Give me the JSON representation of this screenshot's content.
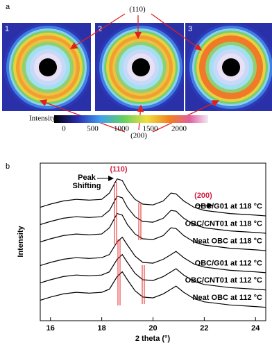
{
  "panel_a": {
    "label": "a",
    "images": [
      "1",
      "2",
      "3"
    ],
    "peak_110": "(110)",
    "peak_200": "(200)",
    "colorbar_label": "Intensity",
    "colorbar_ticks": [
      0,
      500,
      1000,
      1500,
      2000
    ]
  },
  "chart_data": {
    "type": "line",
    "panel_label": "b",
    "xlabel": "2 theta (°)",
    "ylabel": "Intensity",
    "annotations": [
      "(110)",
      "Peak",
      "Shifting",
      "(200)"
    ],
    "x": [
      15.6,
      16,
      16.5,
      17,
      17.5,
      18,
      18.3,
      18.6,
      18.8,
      19,
      19.3,
      19.6,
      20,
      20.4,
      20.7,
      20.9,
      21.2,
      21.6,
      22,
      23,
      24,
      24.4
    ],
    "series": [
      {
        "name": "OBC/G01 at 118 °C",
        "color": "#000000",
        "values": [
          72,
          74,
          76,
          77,
          76.5,
          77,
          81,
          90,
          89,
          83,
          77,
          74,
          73.5,
          76,
          81,
          80.5,
          76,
          72,
          70,
          68,
          67,
          66.5
        ]
      },
      {
        "name": "OBC/CNT01 at 118 °C",
        "color": "#000000",
        "values": [
          61,
          63,
          65,
          66,
          65.5,
          66,
          70,
          79,
          78,
          72,
          66,
          63,
          62.5,
          65,
          70,
          69.5,
          65,
          61,
          59,
          57,
          56,
          55.5
        ]
      },
      {
        "name": "Neat OBC at 118 °C",
        "color": "#000000",
        "values": [
          50,
          52,
          54,
          55,
          54.5,
          55,
          59,
          68,
          67,
          61,
          55,
          52,
          51.5,
          54,
          59,
          58.5,
          54,
          50,
          48,
          46,
          45,
          44.5
        ]
      },
      {
        "name": "OBC/G01 at 112 °C",
        "color": "#000000",
        "values": [
          35,
          37,
          39,
          40,
          39.5,
          40,
          42,
          50,
          53,
          48,
          41,
          37,
          36.5,
          39,
          42,
          44,
          40,
          36,
          34,
          32,
          31,
          30.5
        ]
      },
      {
        "name": "OBC/CNT01 at 112 °C",
        "color": "#000000",
        "values": [
          24,
          26,
          28,
          29,
          28.5,
          29,
          31,
          39,
          42,
          37,
          30,
          26,
          25.5,
          28,
          31,
          33,
          29,
          25,
          23,
          21,
          20,
          19.5
        ]
      },
      {
        "name": "Neat OBC at 112 °C",
        "color": "#000000",
        "values": [
          13,
          15,
          17,
          18,
          17.5,
          18,
          20,
          28,
          31,
          26,
          19,
          15,
          14.5,
          17,
          20,
          22,
          18,
          14,
          12,
          10,
          9,
          8.5
        ]
      }
    ],
    "xlim": [
      15.6,
      24.4
    ],
    "ylim": [
      0,
      100
    ],
    "xticks": [
      16,
      18,
      20,
      22,
      24
    ]
  }
}
